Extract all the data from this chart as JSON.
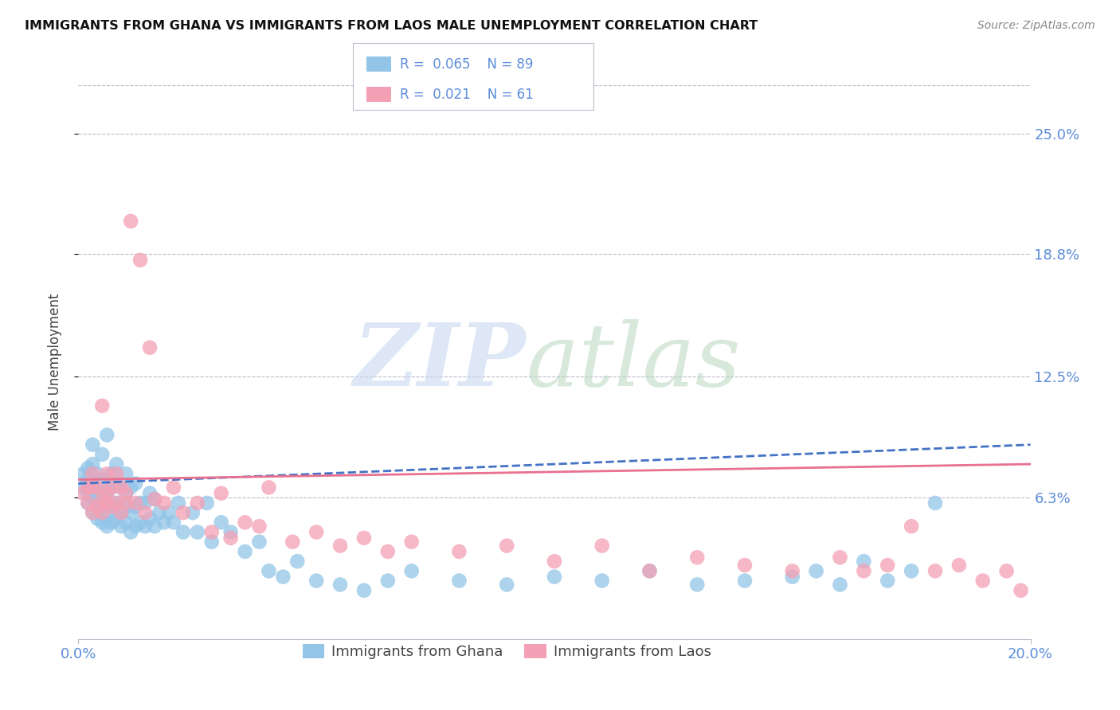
{
  "title": "IMMIGRANTS FROM GHANA VS IMMIGRANTS FROM LAOS MALE UNEMPLOYMENT CORRELATION CHART",
  "source": "Source: ZipAtlas.com",
  "ylabel": "Male Unemployment",
  "ytick_labels": [
    "25.0%",
    "18.8%",
    "12.5%",
    "6.3%"
  ],
  "ytick_values": [
    0.25,
    0.188,
    0.125,
    0.063
  ],
  "xlim": [
    0.0,
    0.2
  ],
  "ylim": [
    -0.01,
    0.275
  ],
  "color_ghana": "#92C5E8",
  "color_laos": "#F4A0B4",
  "color_trendline_ghana": "#4472C4",
  "color_trendline_laos": "#E87090",
  "watermark_zip": "ZIP",
  "watermark_atlas": "atlas",
  "ghana_slope": 0.065,
  "laos_slope": 0.021,
  "ghana_N": 89,
  "laos_N": 61,
  "ghana_x": [
    0.001,
    0.001,
    0.002,
    0.002,
    0.002,
    0.002,
    0.003,
    0.003,
    0.003,
    0.003,
    0.003,
    0.004,
    0.004,
    0.004,
    0.004,
    0.005,
    0.005,
    0.005,
    0.005,
    0.005,
    0.006,
    0.006,
    0.006,
    0.006,
    0.007,
    0.007,
    0.007,
    0.007,
    0.008,
    0.008,
    0.008,
    0.008,
    0.009,
    0.009,
    0.009,
    0.01,
    0.01,
    0.01,
    0.01,
    0.011,
    0.011,
    0.011,
    0.012,
    0.012,
    0.012,
    0.013,
    0.013,
    0.014,
    0.014,
    0.015,
    0.015,
    0.016,
    0.016,
    0.017,
    0.018,
    0.019,
    0.02,
    0.021,
    0.022,
    0.024,
    0.025,
    0.027,
    0.028,
    0.03,
    0.032,
    0.035,
    0.038,
    0.04,
    0.043,
    0.046,
    0.05,
    0.055,
    0.06,
    0.065,
    0.07,
    0.08,
    0.09,
    0.1,
    0.11,
    0.12,
    0.13,
    0.14,
    0.15,
    0.155,
    0.16,
    0.165,
    0.17,
    0.175,
    0.18
  ],
  "ghana_y": [
    0.068,
    0.075,
    0.06,
    0.065,
    0.072,
    0.078,
    0.055,
    0.063,
    0.07,
    0.08,
    0.09,
    0.052,
    0.058,
    0.065,
    0.075,
    0.05,
    0.058,
    0.065,
    0.072,
    0.085,
    0.048,
    0.055,
    0.065,
    0.095,
    0.05,
    0.058,
    0.068,
    0.075,
    0.052,
    0.06,
    0.07,
    0.08,
    0.048,
    0.055,
    0.068,
    0.05,
    0.058,
    0.065,
    0.075,
    0.045,
    0.055,
    0.068,
    0.048,
    0.058,
    0.07,
    0.05,
    0.06,
    0.048,
    0.06,
    0.052,
    0.065,
    0.048,
    0.062,
    0.055,
    0.05,
    0.055,
    0.05,
    0.06,
    0.045,
    0.055,
    0.045,
    0.06,
    0.04,
    0.05,
    0.045,
    0.035,
    0.04,
    0.025,
    0.022,
    0.03,
    0.02,
    0.018,
    0.015,
    0.02,
    0.025,
    0.02,
    0.018,
    0.022,
    0.02,
    0.025,
    0.018,
    0.02,
    0.022,
    0.025,
    0.018,
    0.03,
    0.02,
    0.025,
    0.06
  ],
  "laos_x": [
    0.001,
    0.002,
    0.002,
    0.003,
    0.003,
    0.003,
    0.004,
    0.004,
    0.005,
    0.005,
    0.005,
    0.006,
    0.006,
    0.006,
    0.007,
    0.007,
    0.008,
    0.008,
    0.009,
    0.009,
    0.01,
    0.01,
    0.011,
    0.012,
    0.013,
    0.014,
    0.015,
    0.016,
    0.018,
    0.02,
    0.022,
    0.025,
    0.028,
    0.03,
    0.032,
    0.035,
    0.038,
    0.04,
    0.045,
    0.05,
    0.055,
    0.06,
    0.065,
    0.07,
    0.08,
    0.09,
    0.1,
    0.11,
    0.12,
    0.13,
    0.14,
    0.15,
    0.16,
    0.165,
    0.17,
    0.175,
    0.18,
    0.185,
    0.19,
    0.195,
    0.198
  ],
  "laos_y": [
    0.065,
    0.06,
    0.068,
    0.055,
    0.068,
    0.075,
    0.058,
    0.068,
    0.055,
    0.062,
    0.11,
    0.06,
    0.065,
    0.075,
    0.058,
    0.068,
    0.06,
    0.075,
    0.055,
    0.068,
    0.06,
    0.065,
    0.205,
    0.06,
    0.185,
    0.055,
    0.14,
    0.062,
    0.06,
    0.068,
    0.055,
    0.06,
    0.045,
    0.065,
    0.042,
    0.05,
    0.048,
    0.068,
    0.04,
    0.045,
    0.038,
    0.042,
    0.035,
    0.04,
    0.035,
    0.038,
    0.03,
    0.038,
    0.025,
    0.032,
    0.028,
    0.025,
    0.032,
    0.025,
    0.028,
    0.048,
    0.025,
    0.028,
    0.02,
    0.025,
    0.015
  ]
}
